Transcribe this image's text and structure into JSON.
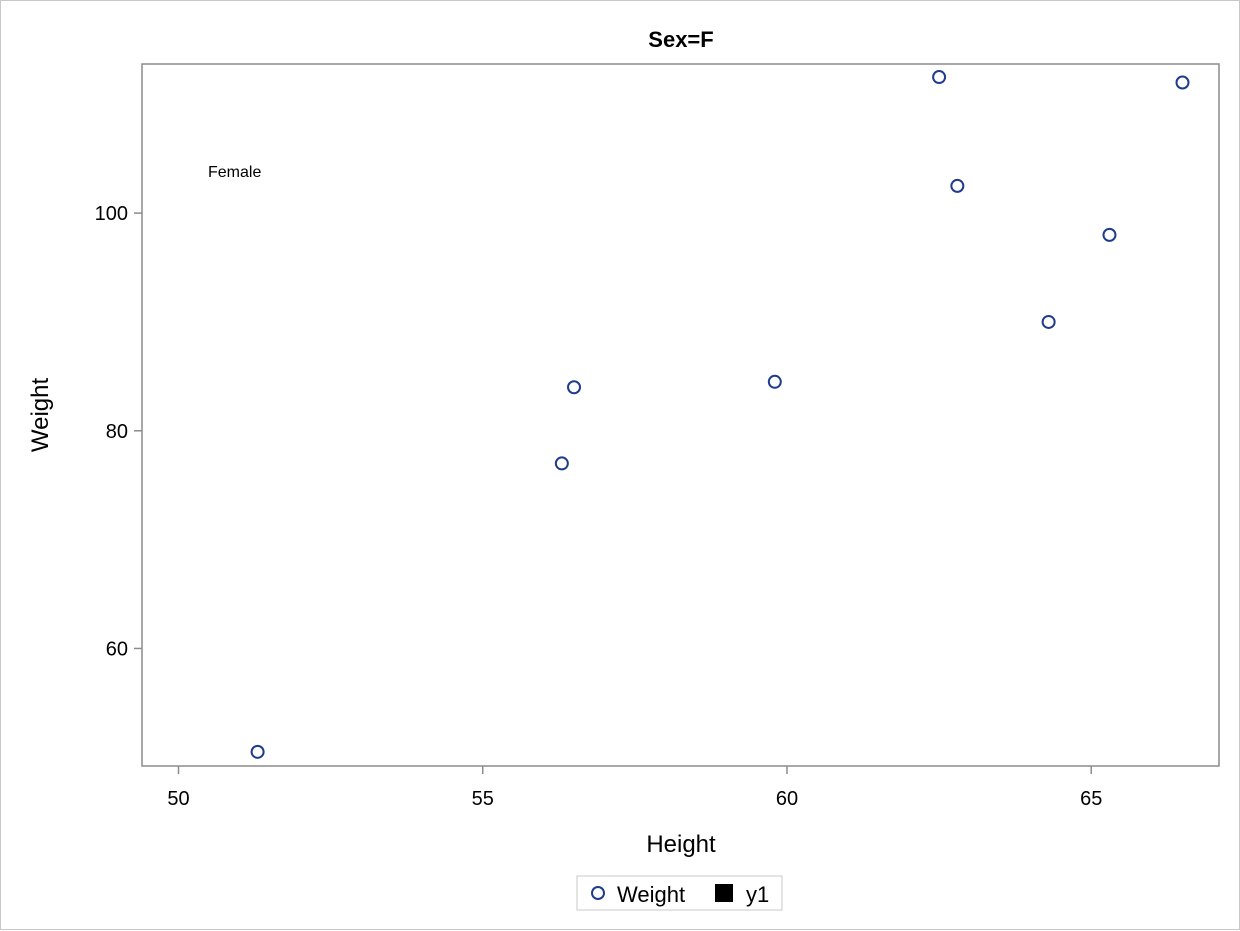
{
  "chart_data": {
    "type": "scatter",
    "title": "Sex=F",
    "xlabel": "Height",
    "ylabel": "Weight",
    "xlim": [
      49.4,
      67.1
    ],
    "ylim": [
      49.2,
      113.7
    ],
    "xticks": [
      50,
      55,
      60,
      65
    ],
    "yticks": [
      60,
      80,
      100
    ],
    "annotation": "Female",
    "grid": false,
    "legend_position": "bottom-center",
    "series": [
      {
        "name": "Weight",
        "marker": "open-circle",
        "color": "#1f3c8c",
        "points": [
          {
            "x": 51.3,
            "y": 50.5
          },
          {
            "x": 56.3,
            "y": 77.0
          },
          {
            "x": 56.5,
            "y": 84.0
          },
          {
            "x": 59.8,
            "y": 84.5
          },
          {
            "x": 62.5,
            "y": 112.5
          },
          {
            "x": 62.8,
            "y": 102.5
          },
          {
            "x": 64.3,
            "y": 90.0
          },
          {
            "x": 65.3,
            "y": 98.0
          },
          {
            "x": 66.5,
            "y": 112.0
          }
        ]
      },
      {
        "name": "y1",
        "marker": "filled-square",
        "color": "#000000",
        "points": []
      }
    ]
  }
}
